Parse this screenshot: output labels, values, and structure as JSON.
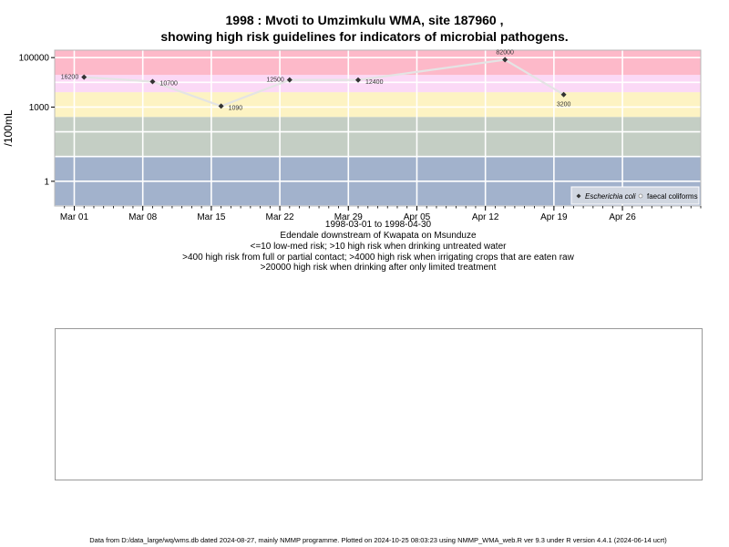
{
  "title_line1": "1998 : Mvoti to Umzimkulu WMA, site 187960 ,",
  "title_line2": "showing high risk guidelines for indicators of microbial pathogens.",
  "caption": [
    "1998-03-01 to 1998-04-30",
    "Edendale downstream of Kwapata on Msunduze",
    "<=10 low-med risk; >10 high risk when drinking untreated water",
    ">400 high risk from full or partial contact; >4000 high risk when irrigating crops that are eaten raw",
    ">20000 high risk when drinking after only limited treatment"
  ],
  "footer": "Data from D:/data_large/wq/wms.db dated 2024-08-27, mainly NMMP programme. Plotted on 2024-10-25 08:03:23 using NMMP_WMA_web.R ver 9.3 under R version 4.4.1 (2024-06-14 ucrt)",
  "chart_data": {
    "type": "line",
    "ylabel": "/100mL",
    "y_scale": "log10",
    "ylim": [
      0.1,
      200000
    ],
    "xlim": [
      "1998-02-27",
      "1998-05-04"
    ],
    "x_ticks": [
      {
        "date": "1998-03-01",
        "label": "Mar 01"
      },
      {
        "date": "1998-03-08",
        "label": "Mar 08"
      },
      {
        "date": "1998-03-15",
        "label": "Mar 15"
      },
      {
        "date": "1998-03-22",
        "label": "Mar 22"
      },
      {
        "date": "1998-03-29",
        "label": "Mar 29"
      },
      {
        "date": "1998-04-05",
        "label": "Apr 05"
      },
      {
        "date": "1998-04-12",
        "label": "Apr 12"
      },
      {
        "date": "1998-04-19",
        "label": "Apr 19"
      },
      {
        "date": "1998-04-26",
        "label": "Apr 26"
      }
    ],
    "y_ticks": [
      {
        "value": 1,
        "label": "1"
      },
      {
        "value": 1000,
        "label": "1000"
      },
      {
        "value": 100000,
        "label": "100000"
      }
    ],
    "grid": true,
    "risk_bands": [
      {
        "from": 0.1,
        "to": 10,
        "color": "#a2b2cc"
      },
      {
        "from": 10,
        "to": 400,
        "color": "#c4cec4"
      },
      {
        "from": 400,
        "to": 4000,
        "color": "#fdf3c3"
      },
      {
        "from": 4000,
        "to": 20000,
        "color": "#fbd9f6"
      },
      {
        "from": 20000,
        "to": 200000,
        "color": "#fdb9c9"
      }
    ],
    "series": [
      {
        "name": "Escherichia coli",
        "color": "#333333",
        "marker": "diamond",
        "points": [
          {
            "date": "1998-03-02",
            "value": 16200,
            "label": "16200",
            "label_pos": "left"
          },
          {
            "date": "1998-03-09",
            "value": 10700,
            "label": "10700",
            "label_pos": "right"
          },
          {
            "date": "1998-03-16",
            "value": 1090,
            "label": "1090",
            "label_pos": "right"
          },
          {
            "date": "1998-03-23",
            "value": 12500,
            "label": "12500",
            "label_pos": "left"
          },
          {
            "date": "1998-03-30",
            "value": 12400,
            "label": "12400",
            "label_pos": "right"
          },
          {
            "date": "1998-04-14",
            "value": 82000,
            "label": "82000",
            "label_pos": "above"
          },
          {
            "date": "1998-04-20",
            "value": 3200,
            "label": "3200",
            "label_pos": "below"
          }
        ]
      },
      {
        "name": "faecal coliforms",
        "color": "#dddddd",
        "marker": "circle-open",
        "points": []
      }
    ],
    "legend_position": "bottom-right"
  }
}
